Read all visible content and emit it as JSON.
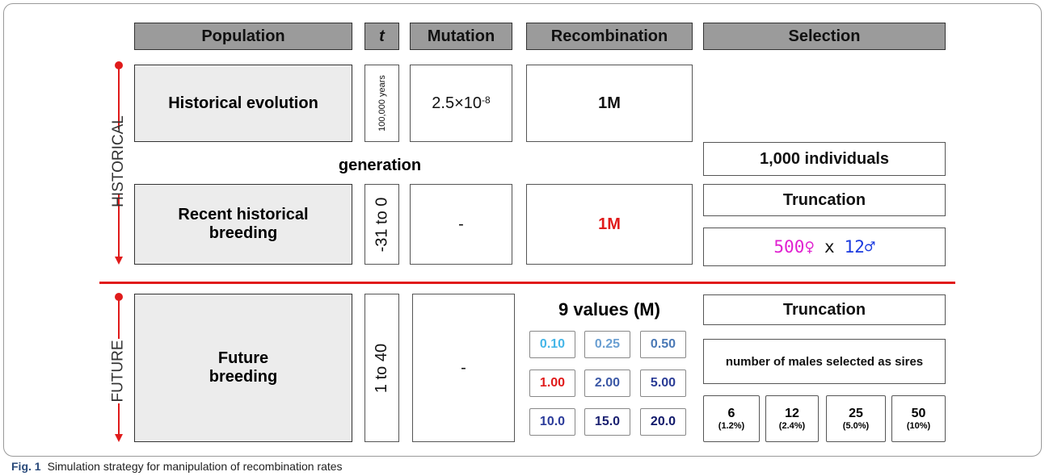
{
  "headers": {
    "population": "Population",
    "t": "t",
    "mutation": "Mutation",
    "recombination": "Recombination",
    "selection": "Selection"
  },
  "side_labels": {
    "historical": "HISTORICAL",
    "future": "FUTURE"
  },
  "historical_evolution": {
    "population": "Historical evolution",
    "t": "100,000 years",
    "mutation": "2.5×10",
    "mutation_exponent": "-8",
    "recombination": "1M"
  },
  "generation": "generation",
  "recent_historical_breeding": {
    "population": "Recent historical breeding",
    "t": "-31 to 0",
    "mutation": "-",
    "recombination": "1M",
    "selection": {
      "individuals": "1,000 individuals",
      "method": "Truncation",
      "females": "500♀",
      "cross": "x",
      "males": "12♂"
    }
  },
  "future_breeding": {
    "population": "Future breeding",
    "t": "1 to 40",
    "mutation": "-",
    "recombination": {
      "title": "9 values (M)",
      "values": [
        "0.10",
        "0.25",
        "0.50",
        "1.00",
        "2.00",
        "5.00",
        "10.0",
        "15.0",
        "20.0"
      ]
    },
    "selection": {
      "method": "Truncation",
      "note": "number of males selected as sires",
      "sires": [
        {
          "number": "6",
          "percent": "(1.2%)"
        },
        {
          "number": "12",
          "percent": "(2.4%)"
        },
        {
          "number": "25",
          "percent": "(5.0%)"
        },
        {
          "number": "50",
          "percent": "(10%)"
        }
      ]
    }
  },
  "caption": {
    "label": "Fig. 1",
    "text": "Simulation strategy for manipulation of recombination rates"
  }
}
